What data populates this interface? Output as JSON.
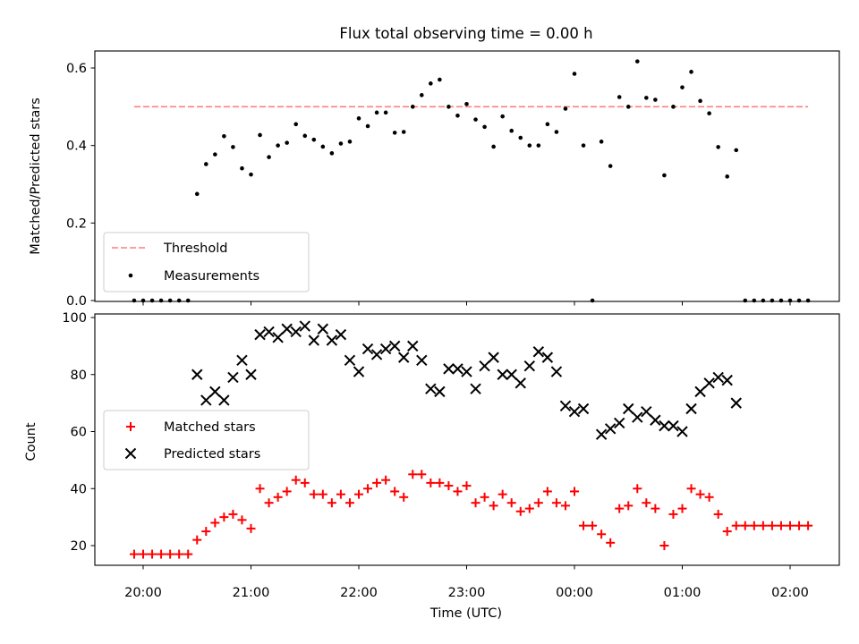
{
  "title": "Flux total observing time = 0.00 h",
  "xlabel": "Time (UTC)",
  "colors": {
    "threshold": "#ff7f7f",
    "measurements": "#000000",
    "matched": "#ff0000",
    "predicted": "#000000"
  },
  "chart_data": [
    {
      "type": "scatter",
      "title": "Flux total observing time = 0.00 h",
      "ylabel": "Matched/Predicted stars",
      "xlabel": "",
      "xlim": [
        "19:45",
        "02:25"
      ],
      "ylim": [
        0,
        0.65
      ],
      "yticks": [
        0.0,
        0.2,
        0.4,
        0.6
      ],
      "ytick_labels": [
        "0.0",
        "0.2",
        "0.4",
        "0.6"
      ],
      "grid": false,
      "legend": {
        "position": "lower-left",
        "entries": [
          {
            "label": "Threshold",
            "marker": "dashed-line"
          },
          {
            "label": "Measurements",
            "marker": "dot"
          }
        ]
      },
      "threshold": {
        "name": "Threshold",
        "value": 0.5,
        "x_range": [
          "19:55",
          "02:10"
        ]
      },
      "series": [
        {
          "name": "Measurements",
          "marker": "dot",
          "points": [
            [
              "19:55",
              0
            ],
            [
              "20:00",
              0
            ],
            [
              "20:05",
              0
            ],
            [
              "20:10",
              0
            ],
            [
              "20:15",
              0
            ],
            [
              "20:20",
              0
            ],
            [
              "20:25",
              0
            ],
            [
              "20:30",
              0.275
            ],
            [
              "20:35",
              0.352
            ],
            [
              "20:40",
              0.377
            ],
            [
              "20:45",
              0.424
            ],
            [
              "20:50",
              0.396
            ],
            [
              "20:55",
              0.341
            ],
            [
              "21:00",
              0.325
            ],
            [
              "21:05",
              0.427
            ],
            [
              "21:10",
              0.37
            ],
            [
              "21:15",
              0.4
            ],
            [
              "21:20",
              0.407
            ],
            [
              "21:25",
              0.455
            ],
            [
              "21:30",
              0.425
            ],
            [
              "21:35",
              0.415
            ],
            [
              "21:40",
              0.397
            ],
            [
              "21:45",
              0.38
            ],
            [
              "21:50",
              0.405
            ],
            [
              "21:55",
              0.41
            ],
            [
              "22:00",
              0.47
            ],
            [
              "22:05",
              0.45
            ],
            [
              "22:10",
              0.485
            ],
            [
              "22:15",
              0.485
            ],
            [
              "22:20",
              0.433
            ],
            [
              "22:25",
              0.435
            ],
            [
              "22:30",
              0.5
            ],
            [
              "22:35",
              0.53
            ],
            [
              "22:40",
              0.56
            ],
            [
              "22:45",
              0.57
            ],
            [
              "22:50",
              0.5
            ],
            [
              "22:55",
              0.477
            ],
            [
              "23:00",
              0.507
            ],
            [
              "23:05",
              0.467
            ],
            [
              "23:10",
              0.448
            ],
            [
              "23:15",
              0.397
            ],
            [
              "23:20",
              0.475
            ],
            [
              "23:25",
              0.438
            ],
            [
              "23:30",
              0.42
            ],
            [
              "23:35",
              0.4
            ],
            [
              "23:40",
              0.4
            ],
            [
              "23:45",
              0.455
            ],
            [
              "23:50",
              0.435
            ],
            [
              "23:55",
              0.495
            ],
            [
              "00:00",
              0.585
            ],
            [
              "00:05",
              0.4
            ],
            [
              "00:10",
              0
            ],
            [
              "00:15",
              0.41
            ],
            [
              "00:20",
              0.347
            ],
            [
              "00:25",
              0.525
            ],
            [
              "00:30",
              0.5
            ],
            [
              "00:35",
              0.617
            ],
            [
              "00:40",
              0.523
            ],
            [
              "00:45",
              0.518
            ],
            [
              "00:50",
              0.323
            ],
            [
              "00:55",
              0.5
            ],
            [
              "01:00",
              0.55
            ],
            [
              "01:05",
              0.59
            ],
            [
              "01:10",
              0.515
            ],
            [
              "01:15",
              0.483
            ],
            [
              "01:20",
              0.396
            ],
            [
              "01:25",
              0.32
            ],
            [
              "01:30",
              0.388
            ],
            [
              "01:35",
              0
            ],
            [
              "01:40",
              0
            ],
            [
              "01:45",
              0
            ],
            [
              "01:50",
              0
            ],
            [
              "01:55",
              0
            ],
            [
              "02:00",
              0
            ],
            [
              "02:05",
              0
            ],
            [
              "02:10",
              0
            ]
          ]
        }
      ]
    },
    {
      "type": "scatter",
      "title": "",
      "ylabel": "Count",
      "xlabel": "Time (UTC)",
      "xlim": [
        "19:45",
        "02:25"
      ],
      "ylim": [
        13,
        101
      ],
      "yticks": [
        20,
        40,
        60,
        80,
        100
      ],
      "ytick_labels": [
        "20",
        "40",
        "60",
        "80",
        "100"
      ],
      "xticks": [
        "20:00",
        "21:00",
        "22:00",
        "23:00",
        "00:00",
        "01:00",
        "02:00"
      ],
      "grid": false,
      "legend": {
        "position": "center-left",
        "entries": [
          {
            "label": "Matched stars",
            "marker": "plus"
          },
          {
            "label": "Predicted stars",
            "marker": "x"
          }
        ]
      },
      "series": [
        {
          "name": "Matched stars",
          "marker": "plus",
          "points": [
            [
              "19:55",
              17
            ],
            [
              "20:00",
              17
            ],
            [
              "20:05",
              17
            ],
            [
              "20:10",
              17
            ],
            [
              "20:15",
              17
            ],
            [
              "20:20",
              17
            ],
            [
              "20:25",
              17
            ],
            [
              "20:30",
              22
            ],
            [
              "20:35",
              25
            ],
            [
              "20:40",
              28
            ],
            [
              "20:45",
              30
            ],
            [
              "20:50",
              31
            ],
            [
              "20:55",
              29
            ],
            [
              "21:00",
              26
            ],
            [
              "21:05",
              40
            ],
            [
              "21:10",
              35
            ],
            [
              "21:15",
              37
            ],
            [
              "21:20",
              39
            ],
            [
              "21:25",
              43
            ],
            [
              "21:30",
              42
            ],
            [
              "21:35",
              38
            ],
            [
              "21:40",
              38
            ],
            [
              "21:45",
              35
            ],
            [
              "21:50",
              38
            ],
            [
              "21:55",
              35
            ],
            [
              "22:00",
              38
            ],
            [
              "22:05",
              40
            ],
            [
              "22:10",
              42
            ],
            [
              "22:15",
              43
            ],
            [
              "22:20",
              39
            ],
            [
              "22:25",
              37
            ],
            [
              "22:30",
              45
            ],
            [
              "22:35",
              45
            ],
            [
              "22:40",
              42
            ],
            [
              "22:45",
              42
            ],
            [
              "22:50",
              41
            ],
            [
              "22:55",
              39
            ],
            [
              "23:00",
              41
            ],
            [
              "23:05",
              35
            ],
            [
              "23:10",
              37
            ],
            [
              "23:15",
              34
            ],
            [
              "23:20",
              38
            ],
            [
              "23:25",
              35
            ],
            [
              "23:30",
              32
            ],
            [
              "23:35",
              33
            ],
            [
              "23:40",
              35
            ],
            [
              "23:45",
              39
            ],
            [
              "23:50",
              35
            ],
            [
              "23:55",
              34
            ],
            [
              "00:00",
              39
            ],
            [
              "00:05",
              27
            ],
            [
              "00:10",
              27
            ],
            [
              "00:15",
              24
            ],
            [
              "00:20",
              21
            ],
            [
              "00:25",
              33
            ],
            [
              "00:30",
              34
            ],
            [
              "00:35",
              40
            ],
            [
              "00:40",
              35
            ],
            [
              "00:45",
              33
            ],
            [
              "00:50",
              20
            ],
            [
              "00:55",
              31
            ],
            [
              "01:00",
              33
            ],
            [
              "01:05",
              40
            ],
            [
              "01:10",
              38
            ],
            [
              "01:15",
              37
            ],
            [
              "01:20",
              31
            ],
            [
              "01:25",
              25
            ],
            [
              "01:30",
              27
            ],
            [
              "01:35",
              27
            ],
            [
              "01:40",
              27
            ],
            [
              "01:45",
              27
            ],
            [
              "01:50",
              27
            ],
            [
              "01:55",
              27
            ],
            [
              "02:00",
              27
            ],
            [
              "02:05",
              27
            ],
            [
              "02:10",
              27
            ]
          ]
        },
        {
          "name": "Predicted stars",
          "marker": "x",
          "points": [
            [
              "20:30",
              80
            ],
            [
              "20:35",
              71
            ],
            [
              "20:40",
              74
            ],
            [
              "20:45",
              71
            ],
            [
              "20:50",
              79
            ],
            [
              "20:55",
              85
            ],
            [
              "21:00",
              80
            ],
            [
              "21:05",
              94
            ],
            [
              "21:10",
              95
            ],
            [
              "21:15",
              93
            ],
            [
              "21:20",
              96
            ],
            [
              "21:25",
              95
            ],
            [
              "21:30",
              97
            ],
            [
              "21:35",
              92
            ],
            [
              "21:40",
              96
            ],
            [
              "21:45",
              92
            ],
            [
              "21:50",
              94
            ],
            [
              "21:55",
              85
            ],
            [
              "22:00",
              81
            ],
            [
              "22:05",
              89
            ],
            [
              "22:10",
              87
            ],
            [
              "22:15",
              89
            ],
            [
              "22:20",
              90
            ],
            [
              "22:25",
              86
            ],
            [
              "22:30",
              90
            ],
            [
              "22:35",
              85
            ],
            [
              "22:40",
              75
            ],
            [
              "22:45",
              74
            ],
            [
              "22:50",
              82
            ],
            [
              "22:55",
              82
            ],
            [
              "23:00",
              81
            ],
            [
              "23:05",
              75
            ],
            [
              "23:10",
              83
            ],
            [
              "23:15",
              86
            ],
            [
              "23:20",
              80
            ],
            [
              "23:25",
              80
            ],
            [
              "23:30",
              77
            ],
            [
              "23:35",
              83
            ],
            [
              "23:40",
              88
            ],
            [
              "23:45",
              86
            ],
            [
              "23:50",
              81
            ],
            [
              "23:55",
              69
            ],
            [
              "00:00",
              67
            ],
            [
              "00:05",
              68
            ],
            [
              "00:15",
              59
            ],
            [
              "00:20",
              61
            ],
            [
              "00:25",
              63
            ],
            [
              "00:30",
              68
            ],
            [
              "00:35",
              65
            ],
            [
              "00:40",
              67
            ],
            [
              "00:45",
              64
            ],
            [
              "00:50",
              62
            ],
            [
              "00:55",
              62
            ],
            [
              "01:00",
              60
            ],
            [
              "01:05",
              68
            ],
            [
              "01:10",
              74
            ],
            [
              "01:15",
              77
            ],
            [
              "01:20",
              79
            ],
            [
              "01:25",
              78
            ],
            [
              "01:30",
              70
            ]
          ]
        }
      ]
    }
  ]
}
